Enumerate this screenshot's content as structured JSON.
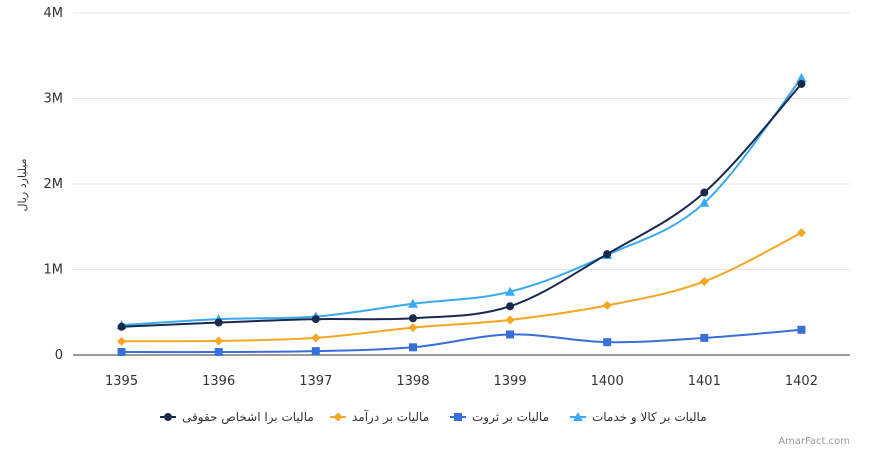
{
  "chart_data": {
    "type": "line",
    "title": "",
    "ylabel": "میلیارد ریال",
    "categories": [
      "1395",
      "1396",
      "1397",
      "1398",
      "1399",
      "1400",
      "1401",
      "1402"
    ],
    "ylim": [
      0,
      4000000
    ],
    "yticks": [
      0,
      1000000,
      2000000,
      3000000,
      4000000
    ],
    "ytick_labels": [
      "0",
      "1M",
      "2M",
      "3M",
      "4M"
    ],
    "grid": true,
    "legend_position": "bottom",
    "series": [
      {
        "name": "مالیات برا اشخاص حقوقی",
        "color": "#1a2a4e",
        "marker": "circle",
        "values": [
          330000,
          380000,
          420000,
          430000,
          570000,
          1180000,
          1900000,
          3170000
        ]
      },
      {
        "name": "مالیات بر درآمد",
        "color": "#f5a623",
        "marker": "diamond",
        "values": [
          160000,
          165000,
          200000,
          320000,
          410000,
          580000,
          860000,
          1430000
        ]
      },
      {
        "name": "مالیات بر ثروت",
        "color": "#3a6fd8",
        "marker": "square",
        "values": [
          35000,
          35000,
          45000,
          90000,
          240000,
          150000,
          200000,
          295000
        ]
      },
      {
        "name": "مالیات بر کالا و خدمات",
        "color": "#3aaaf0",
        "marker": "triangle",
        "values": [
          350000,
          420000,
          450000,
          600000,
          740000,
          1170000,
          1780000,
          3240000
        ]
      }
    ]
  },
  "credit": "AmarFact.com"
}
